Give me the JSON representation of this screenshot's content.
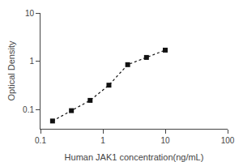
{
  "chart_data": {
    "type": "line",
    "x": [
      0.156,
      0.313,
      0.625,
      1.25,
      2.5,
      5.0,
      10.0
    ],
    "values": [
      0.058,
      0.095,
      0.155,
      0.32,
      0.85,
      1.2,
      1.7
    ],
    "xlabel": "Human JAK1 concentration(ng/mL)",
    "ylabel": "Optical Density",
    "xlim": [
      0.1,
      100
    ],
    "ylim": [
      0.04,
      10
    ],
    "xticks": [
      0.1,
      1,
      10,
      100
    ],
    "yticks": [
      0.1,
      1,
      10
    ],
    "log": true,
    "grid": false,
    "color": "#111111",
    "marker": "square",
    "line_style": "dotted"
  }
}
